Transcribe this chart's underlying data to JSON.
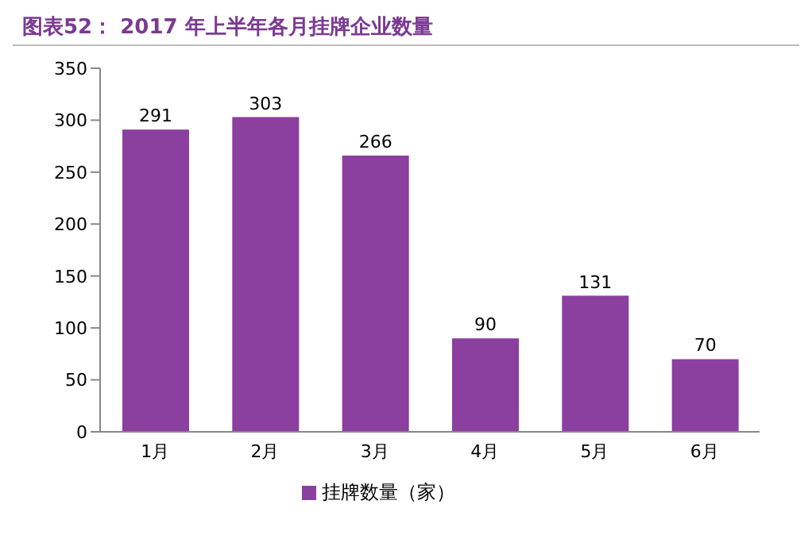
{
  "chart_data": {
    "type": "bar",
    "title": "图表52： 2017 年上半年各月挂牌企业数量",
    "categories": [
      "1月",
      "2月",
      "3月",
      "4月",
      "5月",
      "6月"
    ],
    "series": [
      {
        "name": "挂牌数量（家）",
        "color": "#8b3f9e",
        "values": [
          291,
          303,
          266,
          90,
          131,
          70
        ]
      }
    ],
    "ylim": [
      0,
      350
    ],
    "yticks": [
      0,
      50,
      100,
      150,
      200,
      250,
      300,
      350
    ],
    "grid": false,
    "legend": "bottom",
    "data_labels": true
  }
}
